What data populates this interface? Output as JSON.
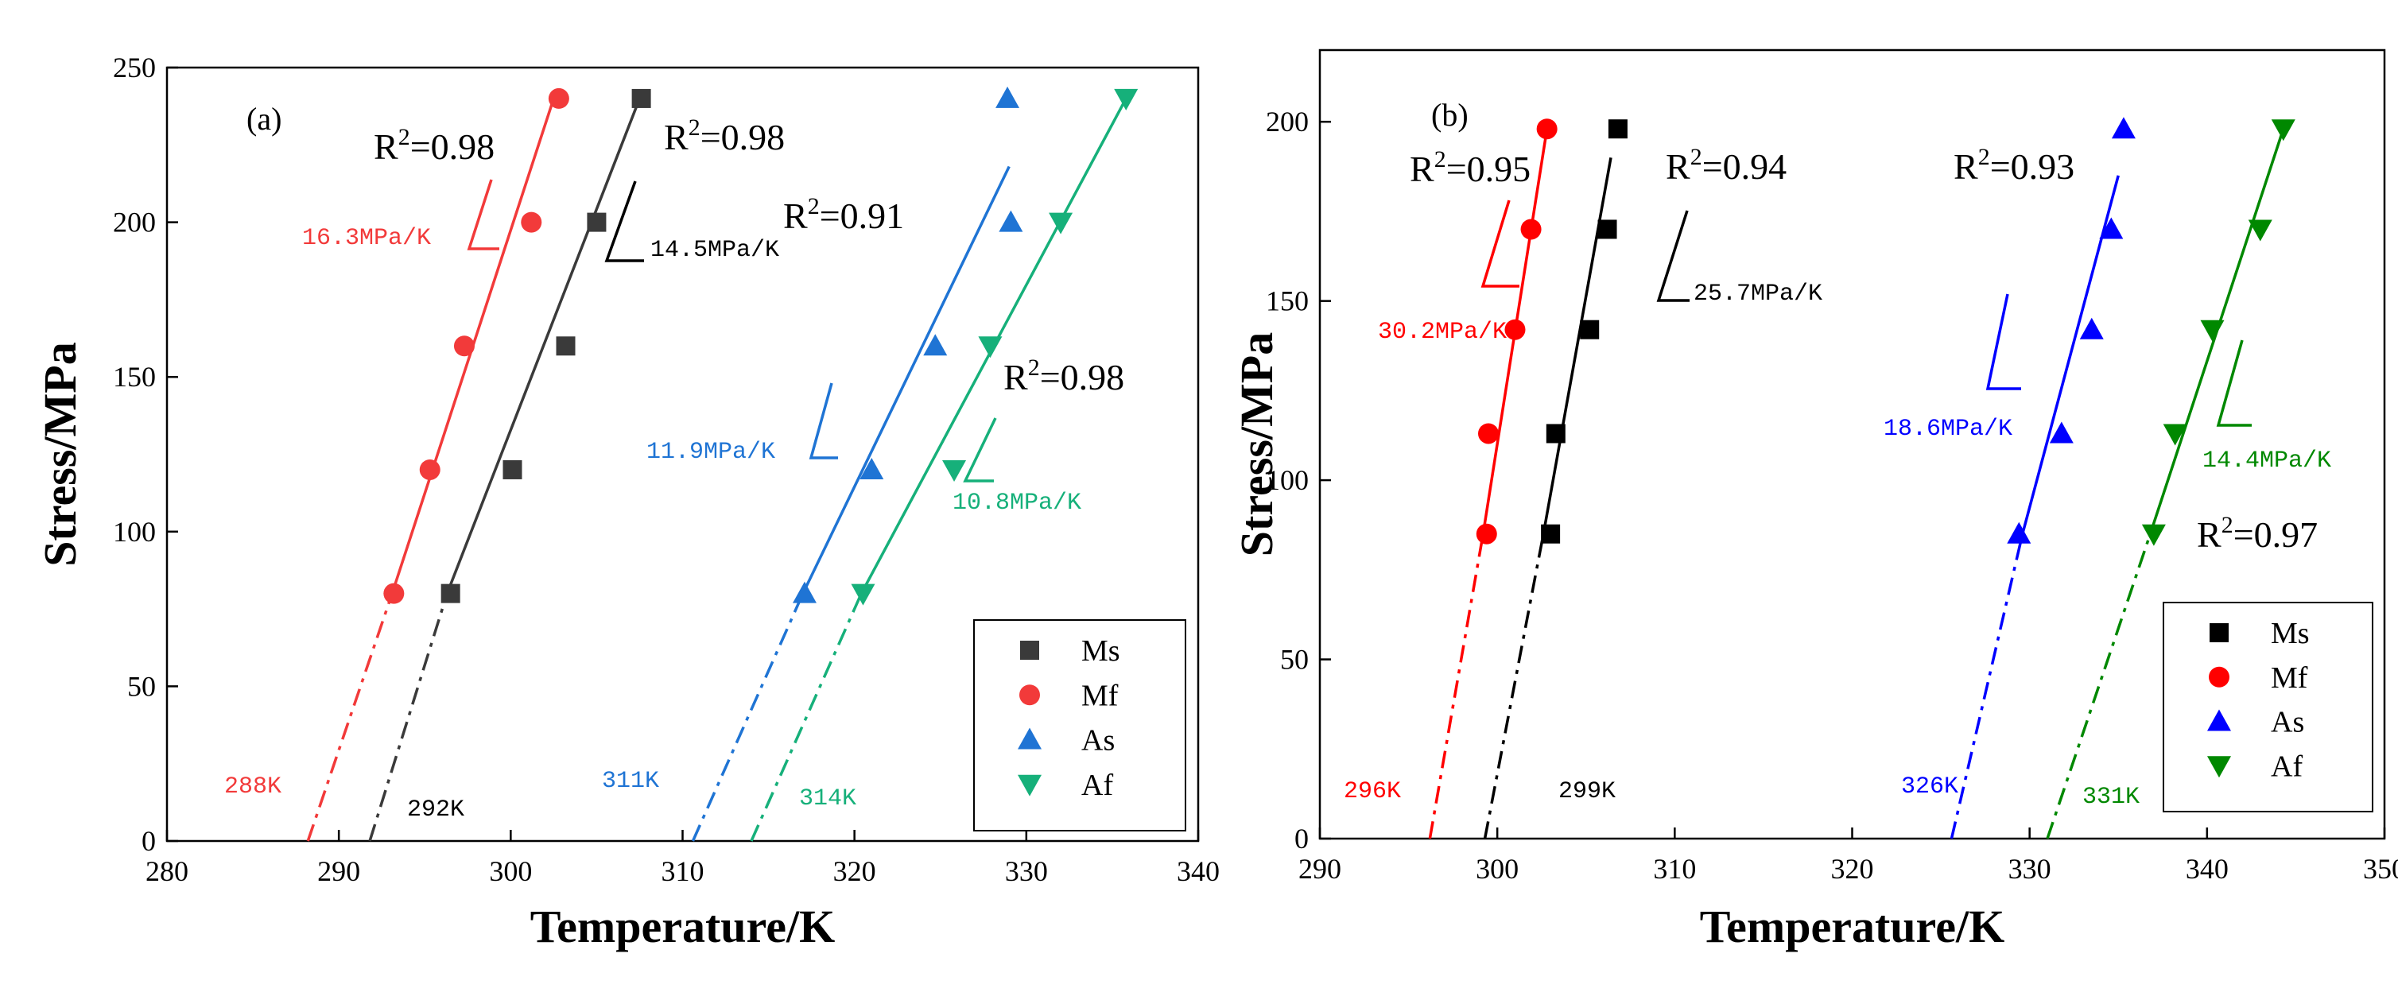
{
  "chart_data": [
    {
      "type": "scatter",
      "panel_label": "(a)",
      "xlabel": "Temperature/K",
      "ylabel": "Stress/MPa",
      "xlim": [
        280,
        340
      ],
      "ylim": [
        0,
        250
      ],
      "xticks": [
        280,
        290,
        300,
        310,
        320,
        330,
        340
      ],
      "yticks": [
        0,
        50,
        100,
        150,
        200,
        250
      ],
      "legend_position": "bottom-right",
      "series": [
        {
          "name": "Ms",
          "color": "#3a3a3a",
          "marker": "square",
          "points": [
            [
              296.5,
              80
            ],
            [
              300.1,
              120
            ],
            [
              303.2,
              160
            ],
            [
              305.0,
              200
            ],
            [
              307.6,
              240
            ]
          ],
          "fit": {
            "x_lo": 296.3,
            "y_lo": 80,
            "x_hi": 307.5,
            "y_hi": 240
          },
          "extrap": {
            "x0": 291.8,
            "x1": 296.3,
            "y1": 80
          },
          "r2": "0.98",
          "slope": "14.5MPa/K",
          "intercept": "292K"
        },
        {
          "name": "Mf",
          "color": "#f23a3a",
          "marker": "circle",
          "points": [
            [
              293.2,
              80
            ],
            [
              295.3,
              120
            ],
            [
              297.3,
              160
            ],
            [
              301.2,
              200
            ],
            [
              302.8,
              240
            ]
          ],
          "fit": {
            "x_lo": 293.1,
            "y_lo": 80,
            "x_hi": 302.5,
            "y_hi": 240
          },
          "extrap": {
            "x0": 288.2,
            "x1": 293.1,
            "y1": 80
          },
          "r2": "0.98",
          "slope": "16.3MPa/K",
          "intercept": "288K"
        },
        {
          "name": "As",
          "color": "#1f74d4",
          "marker": "triangle-up",
          "points": [
            [
              317.1,
              80
            ],
            [
              321.0,
              120
            ],
            [
              324.7,
              160
            ],
            [
              329.1,
              200
            ],
            [
              328.9,
              240
            ]
          ],
          "fit": {
            "x_lo": 317.0,
            "y_lo": 80,
            "x_hi": 329.0,
            "y_hi": 218
          },
          "extrap": {
            "x0": 310.6,
            "x1": 317.0,
            "y1": 80
          },
          "r2": "0.91",
          "slope": "11.9MPa/K",
          "intercept": "311K"
        },
        {
          "name": "Af",
          "color": "#16b07a",
          "marker": "triangle-down",
          "points": [
            [
              320.5,
              80
            ],
            [
              325.8,
              120
            ],
            [
              327.9,
              160
            ],
            [
              332.0,
              200
            ],
            [
              335.8,
              240
            ]
          ],
          "fit": {
            "x_lo": 320.4,
            "y_lo": 80,
            "x_hi": 335.8,
            "y_hi": 240
          },
          "extrap": {
            "x0": 314.0,
            "x1": 320.4,
            "y1": 80
          },
          "r2": "0.98",
          "slope": "10.8MPa/K",
          "intercept": "314K"
        }
      ]
    },
    {
      "type": "scatter",
      "panel_label": "(b)",
      "xlabel": "Temperature/K",
      "ylabel": "Stress/MPa",
      "xlim": [
        290,
        350
      ],
      "ylim": [
        0,
        220
      ],
      "xticks": [
        290,
        300,
        310,
        320,
        330,
        340,
        350
      ],
      "yticks": [
        0,
        50,
        100,
        150,
        200
      ],
      "legend_position": "bottom-right",
      "series": [
        {
          "name": "Ms",
          "color": "#000000",
          "marker": "square",
          "points": [
            [
              303.0,
              85
            ],
            [
              303.3,
              113
            ],
            [
              305.2,
              142
            ],
            [
              306.2,
              170
            ],
            [
              306.8,
              198
            ]
          ],
          "fit": {
            "x_lo": 302.6,
            "y_lo": 85,
            "x_hi": 306.4,
            "y_hi": 190
          },
          "extrap": {
            "x0": 299.3,
            "x1": 302.6,
            "y1": 85
          },
          "r2": "0.94",
          "slope": "25.7MPa/K",
          "intercept": "299K"
        },
        {
          "name": "Mf",
          "color": "#ff0000",
          "marker": "circle",
          "points": [
            [
              299.4,
              85
            ],
            [
              299.5,
              113
            ],
            [
              301.0,
              142
            ],
            [
              301.9,
              170
            ],
            [
              302.8,
              198
            ]
          ],
          "fit": {
            "x_lo": 299.2,
            "y_lo": 85,
            "x_hi": 302.8,
            "y_hi": 198
          },
          "extrap": {
            "x0": 296.2,
            "x1": 299.2,
            "y1": 85
          },
          "r2": "0.95",
          "slope": "30.2MPa/K",
          "intercept": "296K"
        },
        {
          "name": "As",
          "color": "#0000ff",
          "marker": "triangle-up",
          "points": [
            [
              329.4,
              85
            ],
            [
              331.8,
              113
            ],
            [
              333.5,
              142
            ],
            [
              334.6,
              170
            ],
            [
              335.3,
              198
            ]
          ],
          "fit": {
            "x_lo": 329.6,
            "y_lo": 85,
            "x_hi": 335.0,
            "y_hi": 185
          },
          "extrap": {
            "x0": 325.6,
            "x1": 329.6,
            "y1": 85
          },
          "r2": "0.93",
          "slope": "18.6MPa/K",
          "intercept": "326K"
        },
        {
          "name": "Af",
          "color": "#008800",
          "marker": "triangle-down",
          "points": [
            [
              337.0,
              85
            ],
            [
              338.2,
              113
            ],
            [
              340.3,
              142
            ],
            [
              343.0,
              170
            ],
            [
              344.3,
              198
            ]
          ],
          "fit": {
            "x_lo": 336.8,
            "y_lo": 85,
            "x_hi": 344.3,
            "y_hi": 198
          },
          "extrap": {
            "x0": 331.0,
            "x1": 336.8,
            "y1": 85
          },
          "r2": "0.97",
          "slope": "14.4MPa/K",
          "intercept": "331K"
        }
      ]
    }
  ]
}
